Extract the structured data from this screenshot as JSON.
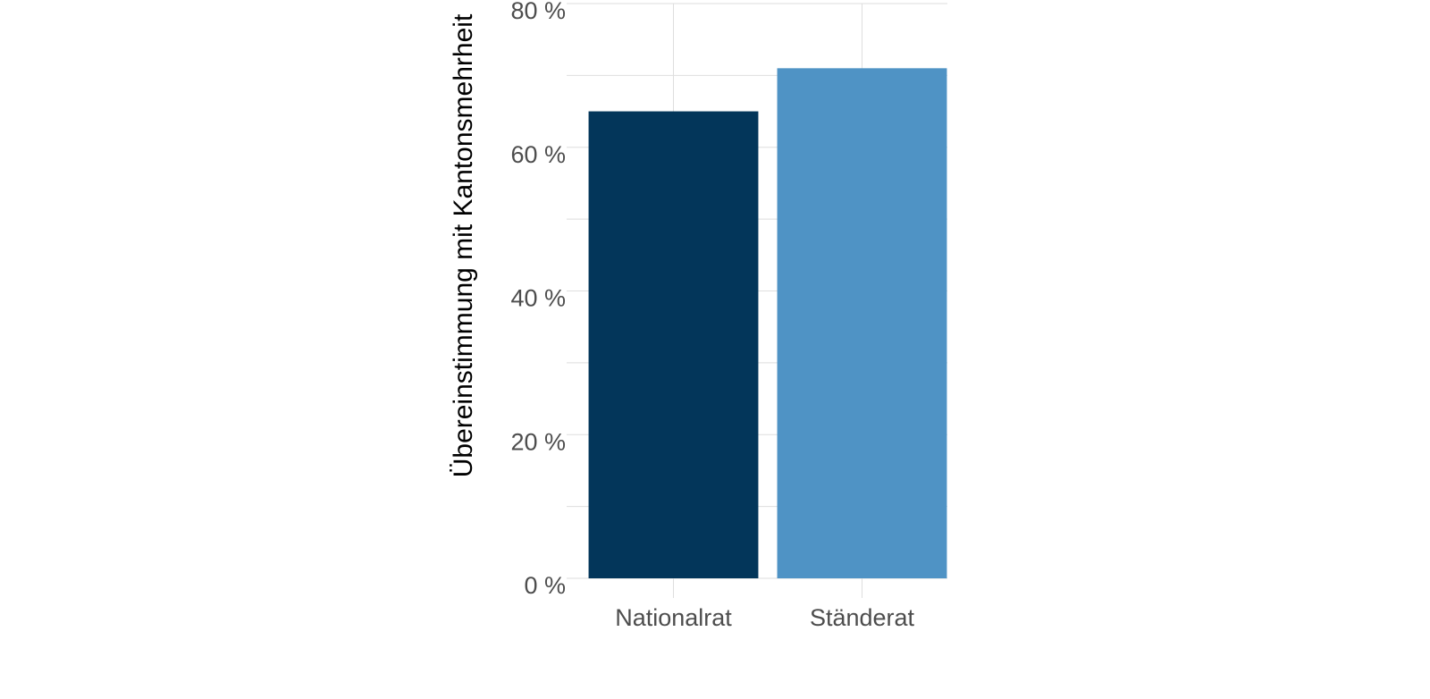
{
  "chart_data": {
    "type": "bar",
    "y_label": "Übereinstimmung mit Kantonsmehrheit",
    "categories": [
      "Nationalrat",
      "Ständerat"
    ],
    "values": [
      65,
      71
    ],
    "colors": [
      "#03365a",
      "#4f93c5"
    ],
    "ylim": [
      0,
      80
    ],
    "yticks": [
      {
        "value": 0,
        "label": "0 %"
      },
      {
        "value": 20,
        "label": "20 %"
      },
      {
        "value": 40,
        "label": "40 %"
      },
      {
        "value": 60,
        "label": "60 %"
      },
      {
        "value": 80,
        "label": "80 %"
      }
    ],
    "minor_yticks": [
      10,
      30,
      50,
      70
    ],
    "grid": true
  }
}
